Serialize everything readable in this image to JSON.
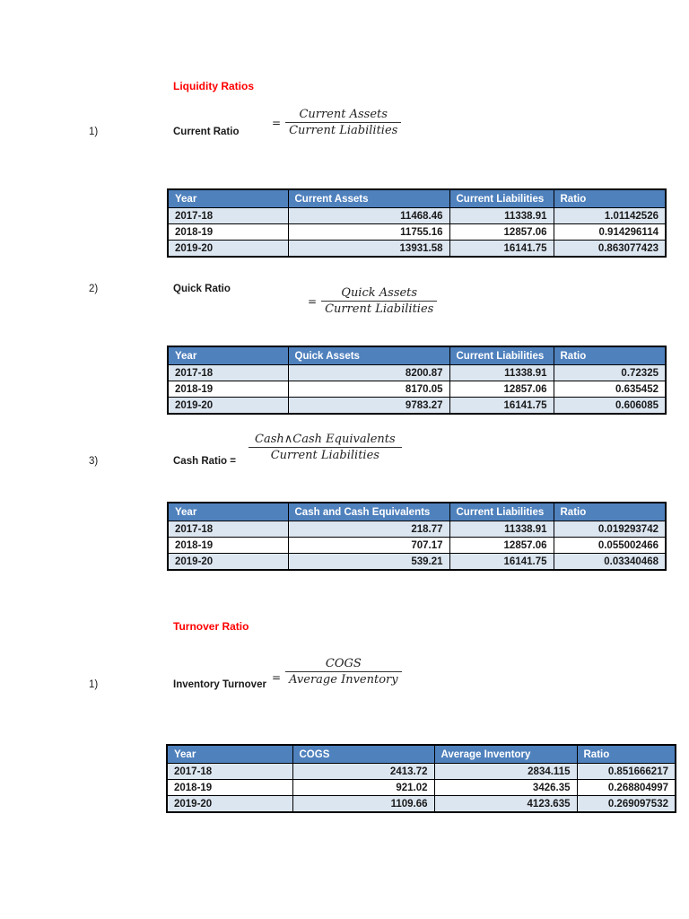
{
  "headings": {
    "liquidity": "Liquidity Ratios",
    "turnover": "Turnover Ratio"
  },
  "items": [
    {
      "number": "1)",
      "label": "Current Ratio",
      "eq": "=",
      "numerator": "Current Assets",
      "denominator": "Current Liabilities"
    },
    {
      "number": "2)",
      "label": "Quick Ratio",
      "eq": "=",
      "numerator": "Quick Assets",
      "denominator": "Current Liabilities"
    },
    {
      "number": "3)",
      "label": "Cash Ratio =",
      "eq": "",
      "numerator": "Cash∧Cash Equivalents",
      "denominator": "Current Liabilities"
    },
    {
      "number": "1)",
      "label": "Inventory Turnover",
      "eq": "=",
      "numerator": "COGS",
      "denominator": "Average Inventory"
    }
  ],
  "tables": [
    {
      "name": "current-ratio-table",
      "headers": [
        "Year",
        "Current Assets",
        "Current Liabilities",
        "Ratio"
      ],
      "rows": [
        [
          "2017-18",
          "11468.46",
          "11338.91",
          "1.01142526"
        ],
        [
          "2018-19",
          "11755.16",
          "12857.06",
          "0.914296114"
        ],
        [
          "2019-20",
          "13931.58",
          "16141.75",
          "0.863077423"
        ]
      ]
    },
    {
      "name": "quick-ratio-table",
      "headers": [
        "Year",
        "Quick Assets",
        "Current Liabilities",
        "Ratio"
      ],
      "rows": [
        [
          "2017-18",
          "8200.87",
          "11338.91",
          "0.72325"
        ],
        [
          "2018-19",
          "8170.05",
          "12857.06",
          "0.635452"
        ],
        [
          "2019-20",
          "9783.27",
          "16141.75",
          "0.606085"
        ]
      ]
    },
    {
      "name": "cash-ratio-table",
      "headers": [
        "Year",
        "Cash and Cash Equivalents",
        "Current Liabilities",
        "Ratio"
      ],
      "rows": [
        [
          "2017-18",
          "218.77",
          "11338.91",
          "0.019293742"
        ],
        [
          "2018-19",
          "707.17",
          "12857.06",
          "0.055002466"
        ],
        [
          "2019-20",
          "539.21",
          "16141.75",
          "0.03340468"
        ]
      ]
    },
    {
      "name": "inventory-turnover-table",
      "headers": [
        "Year",
        "COGS",
        "Average Inventory",
        "Ratio"
      ],
      "rows": [
        [
          "2017-18",
          "2413.72",
          "2834.115",
          "0.851666217"
        ],
        [
          "2018-19",
          "921.02",
          "3426.35",
          "0.268804997"
        ],
        [
          "2019-20",
          "1109.66",
          "4123.635",
          "0.269097532"
        ]
      ]
    }
  ],
  "colors": {
    "table_header_bg": "#4F81BD",
    "table_alt_row_bg": "#DCE6F1",
    "heading_red": "#FF0000",
    "table_border": "#000000"
  }
}
